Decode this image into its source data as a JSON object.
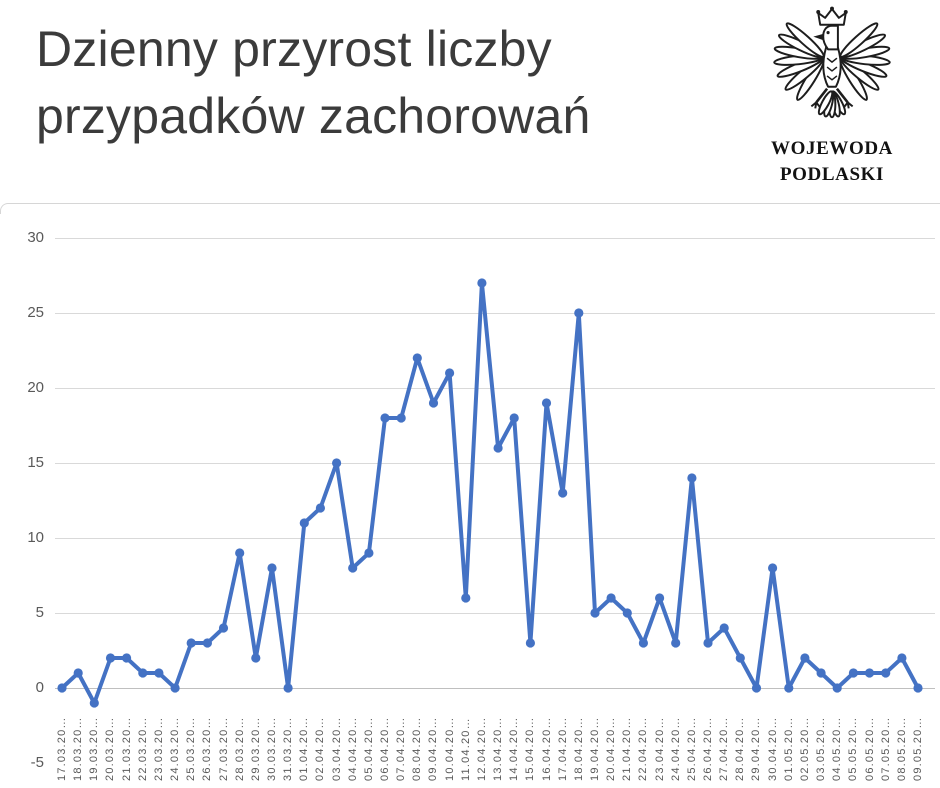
{
  "header": {
    "title_line1": "Dzienny przyrost liczby",
    "title_line2": "przypadków zachorowań"
  },
  "emblem": {
    "icon": "polish-eagle-icon",
    "caption_line1": "WOJEWODA",
    "caption_line2": "PODLASKI"
  },
  "chart_data": {
    "type": "line",
    "title": "Dzienny przyrost liczby przypadków zachorowań",
    "legend": "none",
    "grid": true,
    "ylim": [
      -5,
      30
    ],
    "yticks": [
      30,
      25,
      20,
      15,
      10,
      5,
      0,
      -5
    ],
    "x_label_suffix": "…",
    "categories": [
      "17.03.20",
      "18.03.20",
      "19.03.20",
      "20.03.20",
      "21.03.20",
      "22.03.20",
      "23.03.20",
      "24.03.20",
      "25.03.20",
      "26.03.20",
      "27.03.20",
      "28.03.20",
      "29.03.20",
      "30.03.20",
      "31.03.20",
      "01.04.20",
      "02.04.20",
      "03.04.20",
      "04.04.20",
      "05.04.20",
      "06.04.20",
      "07.04.20",
      "08.04.20",
      "09.04.20",
      "10.04.20",
      "11.04.20",
      "12.04.20",
      "13.04.20",
      "14.04.20",
      "15.04.20",
      "16.04.20",
      "17.04.20",
      "18.04.20",
      "19.04.20",
      "20.04.20",
      "21.04.20",
      "22.04.20",
      "23.04.20",
      "24.04.20",
      "25.04.20",
      "26.04.20",
      "27.04.20",
      "28.04.20",
      "29.04.20",
      "30.04.20",
      "01.05.20",
      "02.05.20",
      "03.05.20",
      "04.05.20",
      "05.05.20",
      "06.05.20",
      "07.05.20",
      "08.05.20",
      "09.05.20"
    ],
    "values": [
      0,
      1,
      -1,
      2,
      2,
      1,
      1,
      0,
      3,
      3,
      4,
      9,
      2,
      8,
      0,
      11,
      12,
      15,
      8,
      9,
      18,
      18,
      22,
      19,
      21,
      6,
      27,
      16,
      18,
      3,
      19,
      13,
      25,
      5,
      6,
      5,
      3,
      6,
      3,
      14,
      3,
      4,
      2,
      0,
      8,
      0,
      2,
      1,
      0,
      1,
      1,
      1,
      2,
      0
    ],
    "colors": {
      "line": "#4472C4",
      "gridline": "#D9D9D9",
      "axis_line": "#BFBFBF",
      "tick_label": "#595959",
      "title_text": "#3B3B3B",
      "background": "#FFFFFF"
    }
  }
}
